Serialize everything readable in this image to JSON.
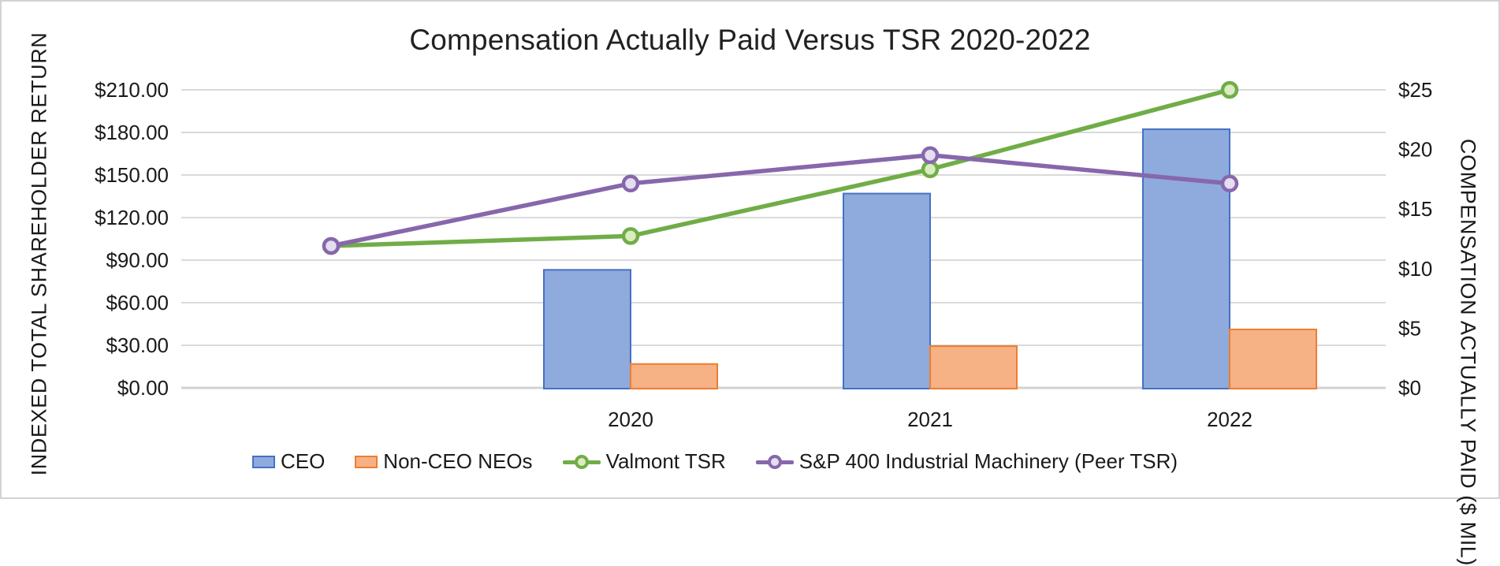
{
  "chart_data": {
    "type": "combo-bar-line",
    "title": "Compensation Actually Paid Versus TSR 2020-2022",
    "categories": [
      "",
      "2020",
      "2021",
      "2022"
    ],
    "left_axis": {
      "title": "INDEXED TOTAL SHAREHOLDER RETURN",
      "min": 0,
      "max": 210,
      "step": 30,
      "tick_labels": [
        "$0.00",
        "$30.00",
        "$60.00",
        "$90.00",
        "$120.00",
        "$150.00",
        "$180.00",
        "$210.00"
      ]
    },
    "right_axis": {
      "title": "COMPENSATION ACTUALLY PAID ($ MIL)",
      "min": 0,
      "max": 25,
      "step": 5,
      "tick_labels": [
        "$0",
        "$5",
        "$10",
        "$15",
        "$20",
        "$25"
      ]
    },
    "series": [
      {
        "name": "CEO",
        "type": "bar",
        "axis": "right",
        "values": [
          null,
          9.9,
          16.3,
          21.7
        ],
        "fill": "#8FAADC",
        "stroke": "#4472C4"
      },
      {
        "name": "Non-CEO NEOs",
        "type": "bar",
        "axis": "right",
        "values": [
          null,
          2.0,
          3.5,
          4.9
        ],
        "fill": "#F6B185",
        "stroke": "#ED7D31"
      },
      {
        "name": "Valmont TSR",
        "type": "line",
        "axis": "left",
        "values": [
          100,
          107,
          154,
          210
        ],
        "color": "#70AD47",
        "marker_fill": "#DAECC0"
      },
      {
        "name": "S&P 400 Industrial Machinery (Peer TSR)",
        "type": "line",
        "axis": "left",
        "values": [
          100,
          144,
          164,
          144
        ],
        "color": "#8767AC",
        "marker_fill": "#E5DDF0"
      }
    ],
    "legend_position": "bottom",
    "grid": true,
    "colors": {
      "gridline": "#DADADA",
      "axis_line": "#D2D2D2",
      "tick_text": "#1a1a1a",
      "title_text": "#212121"
    }
  }
}
